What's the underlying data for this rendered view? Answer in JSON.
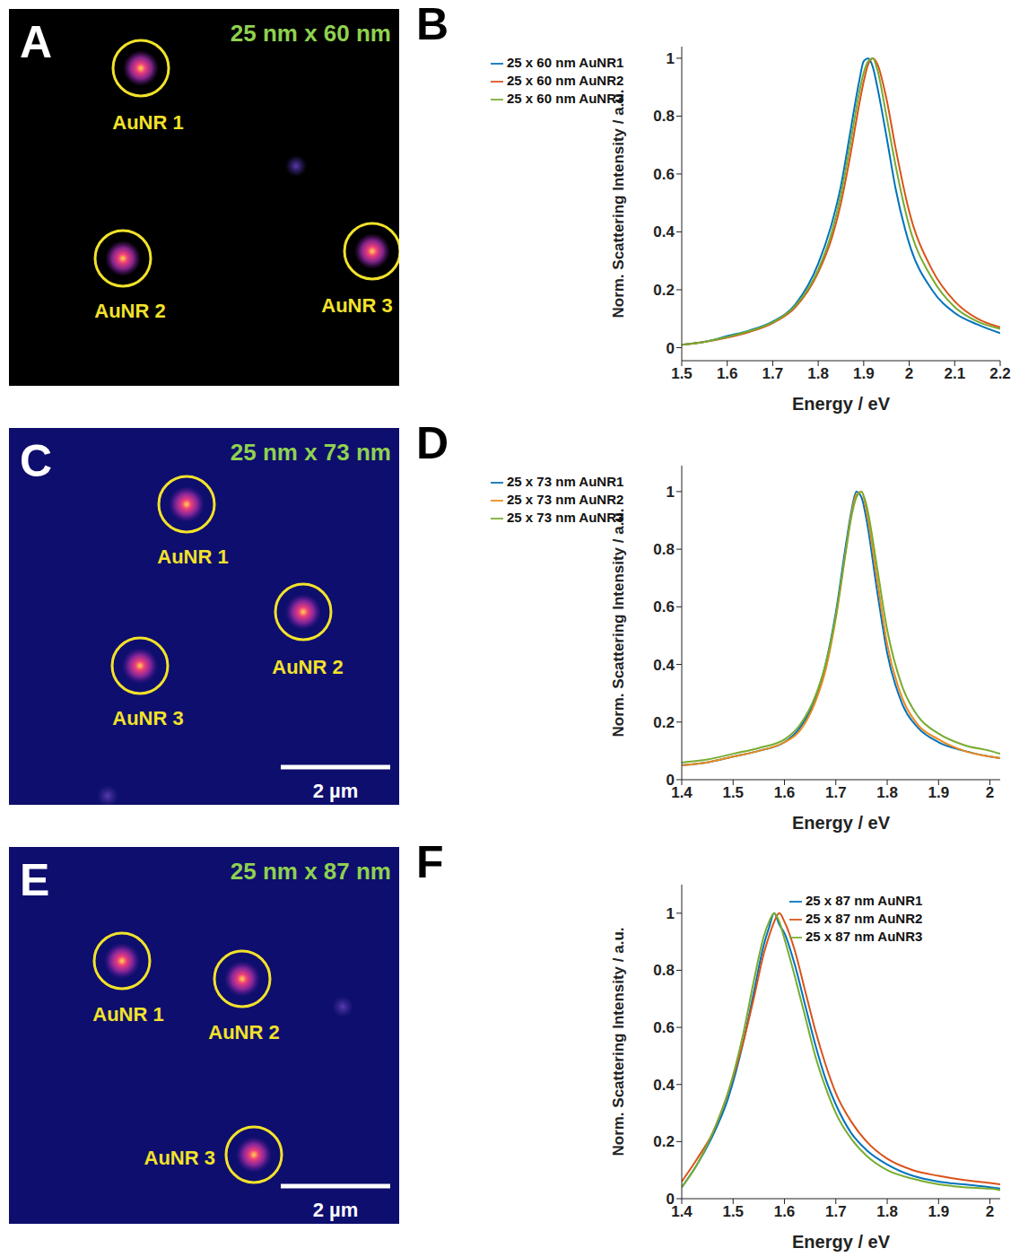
{
  "images": [
    {
      "letter": "A",
      "title": "25 nm x 60 nm",
      "labels": [
        "AuNR 1",
        "AuNR 2",
        "AuNR 3"
      ]
    },
    {
      "letter": "C",
      "title": "25 nm x 73 nm",
      "labels": [
        "AuNR 1",
        "AuNR 2",
        "AuNR 3"
      ],
      "scale_bar": "2 µm"
    },
    {
      "letter": "E",
      "title": "25 nm x 87 nm",
      "labels": [
        "AuNR 1",
        "AuNR 2",
        "AuNR 3"
      ],
      "scale_bar": "2 µm"
    }
  ],
  "chart_data": [
    {
      "letter": "B",
      "type": "line",
      "x_label": "Energy / eV",
      "y_label": "Norm. Scattering Intensity / a.u.",
      "x": [
        1.5,
        1.55,
        1.6,
        1.65,
        1.7,
        1.75,
        1.8,
        1.83,
        1.85,
        1.87,
        1.89,
        1.9,
        1.91,
        1.92,
        1.93,
        1.95,
        1.97,
        2.0,
        2.05,
        2.1,
        2.15,
        2.2
      ],
      "series": [
        {
          "name": "25 x 60 nm AuNR1",
          "color": "#0072bd",
          "values": [
            0.01,
            0.02,
            0.04,
            0.06,
            0.09,
            0.15,
            0.29,
            0.43,
            0.56,
            0.74,
            0.92,
            0.99,
            1.0,
            0.97,
            0.9,
            0.73,
            0.55,
            0.36,
            0.2,
            0.12,
            0.08,
            0.05
          ]
        },
        {
          "name": "25 x 60 nm AuNR2",
          "color": "#d95319",
          "values": [
            0.01,
            0.02,
            0.035,
            0.055,
            0.085,
            0.14,
            0.26,
            0.38,
            0.5,
            0.66,
            0.84,
            0.92,
            0.98,
            1.0,
            0.98,
            0.86,
            0.69,
            0.47,
            0.27,
            0.16,
            0.1,
            0.07
          ]
        },
        {
          "name": "25 x 60 nm AuNR3",
          "color": "#77ac30",
          "values": [
            0.01,
            0.02,
            0.037,
            0.058,
            0.088,
            0.145,
            0.27,
            0.4,
            0.53,
            0.7,
            0.88,
            0.95,
            0.99,
            1.0,
            0.96,
            0.8,
            0.63,
            0.42,
            0.24,
            0.14,
            0.09,
            0.065
          ]
        }
      ],
      "xlim": [
        1.5,
        2.2
      ],
      "xticks": [
        1.5,
        1.6,
        1.7,
        1.8,
        1.9,
        2.0,
        2.1,
        2.2
      ],
      "ylim": [
        -0.045,
        1.04
      ],
      "yticks": [
        0,
        0.2,
        0.4,
        0.6,
        0.8,
        1
      ],
      "legend": "upper left",
      "grid": false
    },
    {
      "letter": "D",
      "type": "line",
      "x_label": "Energy / eV",
      "y_label": "Norm. Scattering Intensity / a.u.",
      "x": [
        1.4,
        1.45,
        1.5,
        1.55,
        1.6,
        1.63,
        1.66,
        1.68,
        1.7,
        1.72,
        1.73,
        1.74,
        1.75,
        1.76,
        1.78,
        1.8,
        1.83,
        1.86,
        1.9,
        1.95,
        2.0,
        2.02
      ],
      "series": [
        {
          "name": "25 x 73 nm AuNR1",
          "color": "#0072bd",
          "values": [
            0.05,
            0.06,
            0.08,
            0.1,
            0.13,
            0.18,
            0.28,
            0.4,
            0.58,
            0.82,
            0.93,
            1.0,
            0.98,
            0.9,
            0.66,
            0.44,
            0.26,
            0.18,
            0.13,
            0.1,
            0.08,
            0.075
          ]
        },
        {
          "name": "25 x 73 nm AuNR2",
          "color": "#ec8a1c",
          "values": [
            0.05,
            0.06,
            0.08,
            0.1,
            0.13,
            0.17,
            0.27,
            0.38,
            0.56,
            0.8,
            0.92,
            0.99,
            1.0,
            0.93,
            0.7,
            0.47,
            0.28,
            0.19,
            0.14,
            0.1,
            0.08,
            0.075
          ]
        },
        {
          "name": "25 x 73 nm AuNR3",
          "color": "#77ac30",
          "values": [
            0.06,
            0.07,
            0.09,
            0.11,
            0.14,
            0.19,
            0.29,
            0.4,
            0.57,
            0.8,
            0.91,
            0.98,
            1.0,
            0.95,
            0.74,
            0.52,
            0.32,
            0.22,
            0.16,
            0.12,
            0.1,
            0.09
          ]
        }
      ],
      "xlim": [
        1.4,
        2.02
      ],
      "xticks": [
        1.4,
        1.5,
        1.6,
        1.7,
        1.8,
        1.9,
        2
      ],
      "ylim": [
        0,
        1.09
      ],
      "yticks": [
        0,
        0.2,
        0.4,
        0.6,
        0.8,
        1
      ],
      "legend": "upper left",
      "grid": false
    },
    {
      "letter": "F",
      "type": "line",
      "x_label": "Energy / eV",
      "y_label": "Norm. Scattering Intensity / a.u.",
      "x": [
        1.4,
        1.43,
        1.46,
        1.49,
        1.52,
        1.54,
        1.56,
        1.57,
        1.58,
        1.59,
        1.6,
        1.62,
        1.64,
        1.66,
        1.68,
        1.7,
        1.73,
        1.76,
        1.8,
        1.85,
        1.9,
        1.95,
        2.0,
        2.02
      ],
      "series": [
        {
          "name": "25 x 87 nm AuNR1",
          "color": "#0072bd",
          "values": [
            0.04,
            0.12,
            0.22,
            0.35,
            0.55,
            0.72,
            0.89,
            0.95,
            1.0,
            0.96,
            0.93,
            0.82,
            0.68,
            0.54,
            0.42,
            0.33,
            0.23,
            0.17,
            0.12,
            0.08,
            0.06,
            0.05,
            0.04,
            0.035
          ]
        },
        {
          "name": "25 x 87 nm AuNR2",
          "color": "#d95319",
          "values": [
            0.06,
            0.14,
            0.23,
            0.37,
            0.55,
            0.7,
            0.86,
            0.92,
            0.97,
            1.0,
            0.97,
            0.87,
            0.73,
            0.59,
            0.47,
            0.37,
            0.27,
            0.2,
            0.14,
            0.1,
            0.08,
            0.065,
            0.055,
            0.05
          ]
        },
        {
          "name": "25 x 87 nm AuNR3",
          "color": "#77ac30",
          "values": [
            0.04,
            0.12,
            0.23,
            0.37,
            0.58,
            0.76,
            0.92,
            0.97,
            1.0,
            0.97,
            0.91,
            0.78,
            0.64,
            0.5,
            0.39,
            0.3,
            0.21,
            0.15,
            0.1,
            0.07,
            0.05,
            0.04,
            0.035,
            0.03
          ]
        }
      ],
      "xlim": [
        1.4,
        2.02
      ],
      "xticks": [
        1.4,
        1.5,
        1.6,
        1.7,
        1.8,
        1.9,
        2
      ],
      "ylim": [
        0,
        1.1
      ],
      "yticks": [
        0,
        0.2,
        0.4,
        0.6,
        0.8,
        1
      ],
      "legend": "upper right",
      "grid": false
    }
  ]
}
